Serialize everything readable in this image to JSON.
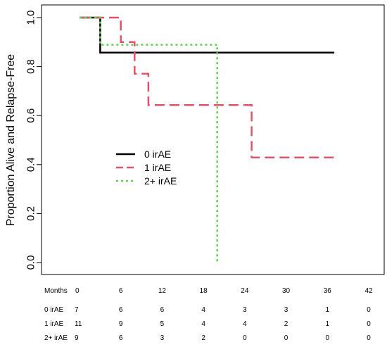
{
  "chart_data": {
    "type": "line",
    "title": "",
    "xlabel": "",
    "ylabel": "Proportion Alive and Relapse-Free",
    "xlim": [
      -1,
      43
    ],
    "ylim": [
      0,
      1
    ],
    "y_ticks": [
      "0.0",
      "0.2",
      "0.4",
      "0.6",
      "0.8",
      "1.0"
    ],
    "grid": false,
    "legend_position": "center-left",
    "series": [
      {
        "name": "0 irAE",
        "color": "#000000",
        "dash": "solid",
        "steps": [
          [
            0,
            1.0
          ],
          [
            3,
            1.0
          ],
          [
            3,
            0.857
          ],
          [
            37,
            0.857
          ]
        ]
      },
      {
        "name": "1 irAE",
        "color": "#DF536B",
        "dash": "dashed",
        "steps": [
          [
            0,
            1.0
          ],
          [
            6,
            1.0
          ],
          [
            6,
            0.9
          ],
          [
            8,
            0.9
          ],
          [
            8,
            0.771
          ],
          [
            10,
            0.771
          ],
          [
            10,
            0.643
          ],
          [
            25,
            0.643
          ],
          [
            25,
            0.429
          ],
          [
            37,
            0.429
          ]
        ]
      },
      {
        "name": "2+ irAE",
        "color": "#61D04F",
        "dash": "dotted",
        "steps": [
          [
            0,
            1.0
          ],
          [
            3,
            1.0
          ],
          [
            3,
            0.889
          ],
          [
            20,
            0.889
          ],
          [
            20,
            0.0
          ]
        ]
      }
    ],
    "risk_table": {
      "header_label": "Months",
      "times": [
        "0",
        "6",
        "12",
        "18",
        "24",
        "30",
        "36",
        "42"
      ],
      "rows": [
        {
          "label": "0 irAE",
          "counts": [
            "7",
            "6",
            "6",
            "4",
            "3",
            "3",
            "1",
            "0"
          ]
        },
        {
          "label": "1 irAE",
          "counts": [
            "11",
            "9",
            "5",
            "4",
            "4",
            "2",
            "1",
            "0"
          ]
        },
        {
          "label": "2+ irAE",
          "counts": [
            "9",
            "6",
            "3",
            "2",
            "0",
            "0",
            "0",
            "0"
          ]
        }
      ]
    }
  }
}
